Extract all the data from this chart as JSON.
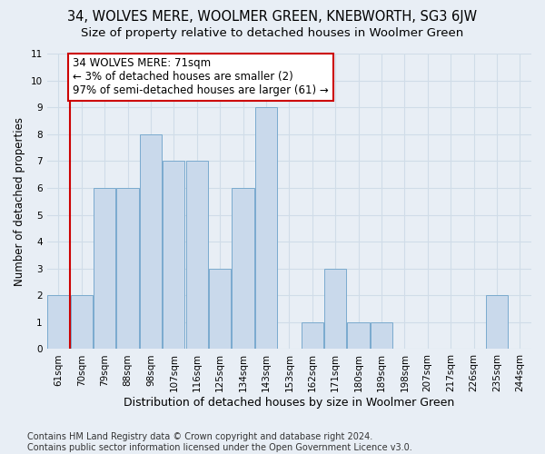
{
  "title": "34, WOLVES MERE, WOOLMER GREEN, KNEBWORTH, SG3 6JW",
  "subtitle": "Size of property relative to detached houses in Woolmer Green",
  "xlabel": "Distribution of detached houses by size in Woolmer Green",
  "ylabel": "Number of detached properties",
  "categories": [
    "61sqm",
    "70sqm",
    "79sqm",
    "88sqm",
    "98sqm",
    "107sqm",
    "116sqm",
    "125sqm",
    "134sqm",
    "143sqm",
    "153sqm",
    "162sqm",
    "171sqm",
    "180sqm",
    "189sqm",
    "198sqm",
    "207sqm",
    "217sqm",
    "226sqm",
    "235sqm",
    "244sqm"
  ],
  "values": [
    2,
    2,
    6,
    6,
    8,
    7,
    7,
    3,
    6,
    9,
    0,
    1,
    3,
    1,
    1,
    0,
    0,
    0,
    0,
    2,
    0
  ],
  "bar_color": "#c9d9eb",
  "bar_edge_color": "#7aaace",
  "highlight_vline_x": 0.5,
  "annotation_text": "34 WOLVES MERE: 71sqm\n← 3% of detached houses are smaller (2)\n97% of semi-detached houses are larger (61) →",
  "annotation_box_facecolor": "#ffffff",
  "annotation_box_edgecolor": "#cc0000",
  "ylim_max": 11,
  "yticks": [
    0,
    1,
    2,
    3,
    4,
    5,
    6,
    7,
    8,
    9,
    10,
    11
  ],
  "footer_line1": "Contains HM Land Registry data © Crown copyright and database right 2024.",
  "footer_line2": "Contains public sector information licensed under the Open Government Licence v3.0.",
  "bg_color": "#e8eef5",
  "grid_color": "#d0dce8",
  "title_fontsize": 10.5,
  "subtitle_fontsize": 9.5,
  "ylabel_fontsize": 8.5,
  "xlabel_fontsize": 9,
  "tick_fontsize": 7.5,
  "annot_fontsize": 8.5,
  "footer_fontsize": 7
}
